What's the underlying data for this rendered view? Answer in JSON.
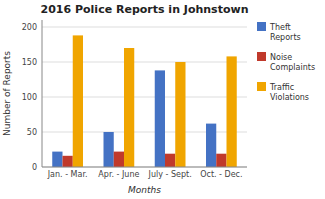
{
  "chart_data": {
    "type": "bar",
    "title": "2016 Police Reports in Johnstown",
    "x_label": "Months",
    "y_label": "Number of Reports",
    "categories": [
      "Jan. - Mar.",
      "Apr. - June",
      "July - Sept.",
      "Oct. - Dec."
    ],
    "series": [
      {
        "name": "Theft\nReports",
        "color": "#4472C4",
        "values": [
          22,
          50,
          138,
          62
        ]
      },
      {
        "name": "Noise\nComplaints",
        "color": "#C0392B",
        "values": [
          16,
          22,
          19,
          19
        ]
      },
      {
        "name": "Traffic\nViolations",
        "color": "#F0A500",
        "values": [
          188,
          170,
          150,
          158
        ]
      }
    ],
    "ylim": [
      0,
      210
    ],
    "yticks": [
      0,
      50,
      100,
      150,
      200
    ],
    "grid": true,
    "legend": "right"
  }
}
